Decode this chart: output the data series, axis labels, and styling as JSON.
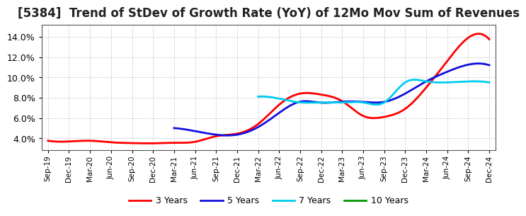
{
  "title": "[5384]  Trend of StDev of Growth Rate (YoY) of 12Mo Mov Sum of Revenues",
  "title_fontsize": 12,
  "ylim": [
    0.028,
    0.152
  ],
  "yticks": [
    0.04,
    0.06,
    0.08,
    0.1,
    0.12,
    0.14
  ],
  "ytick_labels": [
    "4.0%",
    "6.0%",
    "8.0%",
    "10.0%",
    "12.0%",
    "14.0%"
  ],
  "background_color": "#ffffff",
  "grid_color": "#999999",
  "legend_labels": [
    "3 Years",
    "5 Years",
    "7 Years",
    "10 Years"
  ],
  "legend_colors": [
    "#ff0000",
    "#1010dd",
    "#00ccee",
    "#009900"
  ],
  "x_labels": [
    "Sep-19",
    "Dec-19",
    "Mar-20",
    "Jun-20",
    "Sep-20",
    "Dec-20",
    "Mar-21",
    "Jun-21",
    "Sep-21",
    "Dec-21",
    "Mar-22",
    "Jun-22",
    "Sep-22",
    "Dec-22",
    "Mar-23",
    "Jun-23",
    "Sep-23",
    "Dec-23",
    "Mar-24",
    "Jun-24",
    "Sep-24",
    "Dec-24"
  ],
  "series_3y_x": [
    0,
    1,
    2,
    3,
    4,
    5,
    6,
    7,
    8,
    9,
    10,
    11,
    12,
    13,
    14,
    15,
    16,
    17,
    18,
    19,
    20,
    21
  ],
  "series_3y_v": [
    0.0375,
    0.0368,
    0.0375,
    0.036,
    0.0352,
    0.035,
    0.0355,
    0.0365,
    0.042,
    0.0445,
    0.054,
    0.073,
    0.084,
    0.083,
    0.0765,
    0.062,
    0.061,
    0.069,
    0.09,
    0.116,
    0.139,
    0.1375
  ],
  "series_5y_x": [
    6,
    7,
    8,
    9,
    10,
    11,
    12,
    13,
    14,
    15,
    16,
    17,
    18,
    19,
    20,
    21
  ],
  "series_5y_v": [
    0.05,
    0.047,
    0.0435,
    0.0435,
    0.051,
    0.065,
    0.076,
    0.075,
    0.076,
    0.0758,
    0.0758,
    0.084,
    0.096,
    0.1055,
    0.1125,
    0.112
  ],
  "series_7y_x": [
    10,
    11,
    12,
    13,
    14,
    15,
    16,
    17,
    18,
    19,
    20,
    21
  ],
  "series_7y_v": [
    0.081,
    0.079,
    0.0753,
    0.0752,
    0.0752,
    0.0752,
    0.0752,
    0.095,
    0.096,
    0.095,
    0.096,
    0.095
  ],
  "series_10y_x": [],
  "series_10y_v": []
}
